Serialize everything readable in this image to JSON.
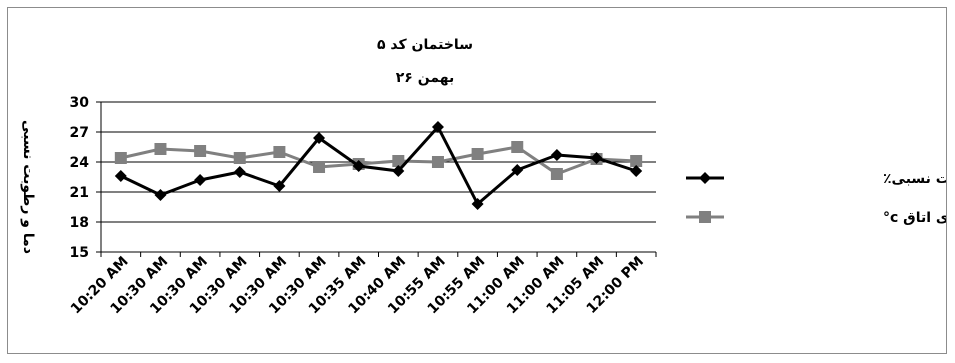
{
  "chart_data": {
    "type": "line",
    "title": "ساختمان کد ۵",
    "subtitle": "۲۶ بهمن",
    "ylabel": "دما و رطوبت نسبی",
    "xlabel": "",
    "ylim": [
      15,
      30
    ],
    "yticks": [
      15,
      18,
      21,
      24,
      27,
      30
    ],
    "grid": true,
    "legend_position": "right",
    "categories": [
      "10:20 AM",
      "10:30 AM",
      "10:30 AM",
      "10:30 AM",
      "10:30 AM",
      "10:30 AM",
      "10:35 AM",
      "10:40 AM",
      "10:55 AM",
      "10:55 AM",
      "11:00 AM",
      "11:00 AM",
      "11:05 AM",
      "12:00 PM"
    ],
    "series": [
      {
        "name": "رطوبت نسبی٪",
        "color": "#000000",
        "marker": "diamond",
        "values": [
          22.6,
          20.7,
          22.2,
          23.0,
          21.6,
          26.4,
          23.6,
          23.1,
          27.5,
          19.8,
          23.2,
          24.7,
          24.4,
          23.1
        ]
      },
      {
        "name": "دما ی هوای اتاق c°",
        "color": "#808080",
        "marker": "square",
        "values": [
          24.4,
          25.3,
          25.1,
          24.4,
          25.0,
          23.5,
          23.8,
          24.1,
          24.0,
          24.8,
          25.5,
          22.8,
          24.3,
          24.1
        ]
      }
    ]
  }
}
